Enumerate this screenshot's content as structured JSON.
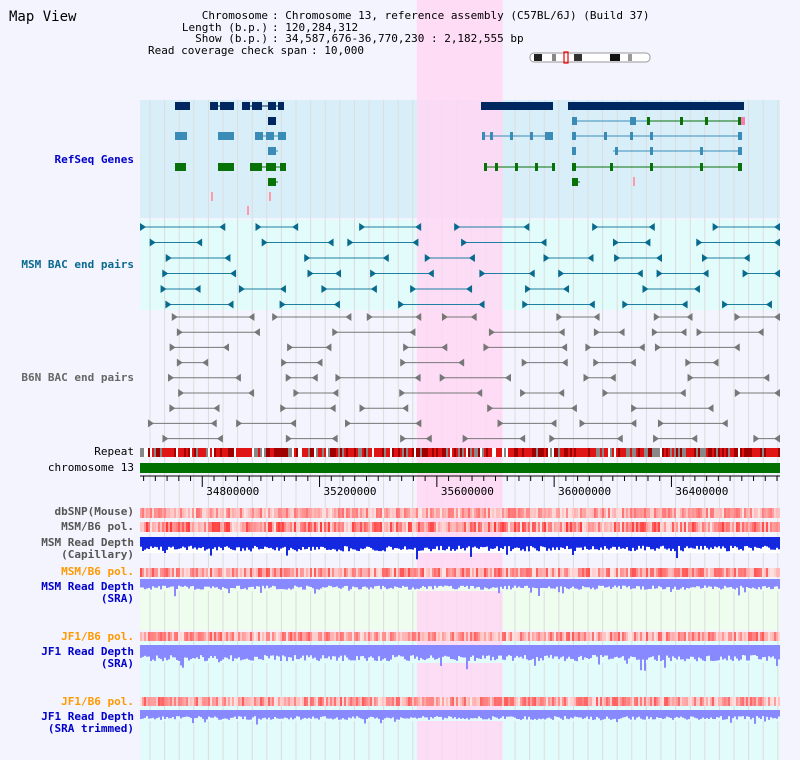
{
  "page": {
    "title": "Map View"
  },
  "info": {
    "chromosome_key": "Chromosome",
    "chromosome": "Chromosome 13, reference assembly (C57BL/6J) (Build 37)",
    "length_key": "Length (b.p.)",
    "length": "120,284,312",
    "show_key": "Show (b.p.)",
    "show": "34,587,676-36,770,230 : 2,182,555 bp",
    "coverage_key": "Read coverage check span",
    "coverage": "10,000"
  },
  "tracks": {
    "refseq": "RefSeq Genes",
    "msm_bac": "MSM BAC end pairs",
    "b6n_bac": "B6N BAC end pairs",
    "repeat": "Repeat",
    "chromosome": "chromosome 13",
    "dbsnp": "dbSNP(Mouse)",
    "msm_b6_pol_1": "MSM/B6 pol.",
    "msm_depth_cap_1": "MSM Read Depth",
    "msm_depth_cap_2": "(Capillary)",
    "msm_b6_pol_2": "MSM/B6 pol.",
    "msm_depth_sra_1": "MSM Read Depth",
    "msm_depth_sra_2": "(SRA)",
    "jf1_b6_pol_1": "JF1/B6 pol.",
    "jf1_depth_sra_1": "JF1 Read Depth",
    "jf1_depth_sra_2": "(SRA)",
    "jf1_b6_pol_2": "JF1/B6 pol.",
    "jf1_depth_trim_1": "JF1 Read Depth",
    "jf1_depth_trim_2": "(SRA trimmed)"
  },
  "axis": {
    "ticks": [
      "34800000",
      "35200000",
      "35600000",
      "36000000",
      "36400000"
    ],
    "tick_values": [
      34800000,
      35200000,
      35600000,
      36000000,
      36400000
    ],
    "range": [
      34587676,
      36770230
    ]
  },
  "highlight_range": [
    35600000,
    35780000
  ],
  "colors": {
    "refseq_dark": "#00275f",
    "refseq_mid": "#3a8cb6",
    "refseq_green": "#087208",
    "msm_bac": "#086a8c",
    "b6n_bac": "#777777",
    "chromosome_bar": "#007000",
    "highlight": "#ffd7f3",
    "label_blue": "#0000cc",
    "label_orange": "#ff9900",
    "depth_dark": "#1428e0",
    "depth_light": "#8888ff"
  }
}
